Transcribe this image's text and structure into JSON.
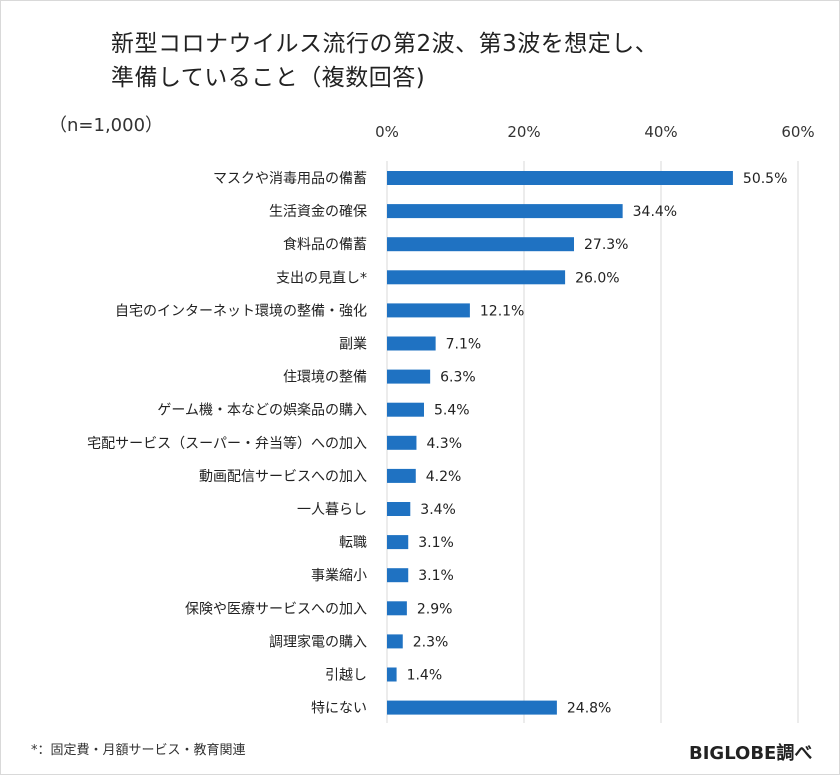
{
  "title": {
    "line1": "新型コロナウイルス流行の第2波、第3波を想定し、",
    "line2": "準備していること（複数回答)"
  },
  "sample": "（n=1,000）",
  "footnote": "*：固定費・月額サービス・教育関連",
  "source": "BIGLOBE調べ",
  "colors": {
    "bar": "#1f72c2",
    "grid": "#d9d9d9",
    "text": "#222222"
  },
  "chart_data": {
    "type": "bar",
    "orientation": "horizontal",
    "xlim": [
      0,
      60
    ],
    "ticks": [
      0,
      20,
      40,
      60
    ],
    "tick_labels": [
      "0%",
      "20%",
      "40%",
      "60%"
    ],
    "grid": true,
    "categories": [
      "マスクや消毒用品の備蓄",
      "生活資金の確保",
      "食料品の備蓄",
      "支出の見直し*",
      "自宅のインターネット環境の整備・強化",
      "副業",
      "住環境の整備",
      "ゲーム機・本などの娯楽品の購入",
      "宅配サービス（スーパー・弁当等）への加入",
      "動画配信サービスへの加入",
      "一人暮らし",
      "転職",
      "事業縮小",
      "保険や医療サービスへの加入",
      "調理家電の購入",
      "引越し",
      "特にない"
    ],
    "values": [
      50.5,
      34.4,
      27.3,
      26.0,
      12.1,
      7.1,
      6.3,
      5.4,
      4.3,
      4.2,
      3.4,
      3.1,
      3.1,
      2.9,
      2.3,
      1.4,
      24.8
    ],
    "value_labels": [
      "50.5%",
      "34.4%",
      "27.3%",
      "26.0%",
      "12.1%",
      "7.1%",
      "6.3%",
      "5.4%",
      "4.3%",
      "4.2%",
      "3.4%",
      "3.1%",
      "3.1%",
      "2.9%",
      "2.3%",
      "1.4%",
      "24.8%"
    ]
  }
}
